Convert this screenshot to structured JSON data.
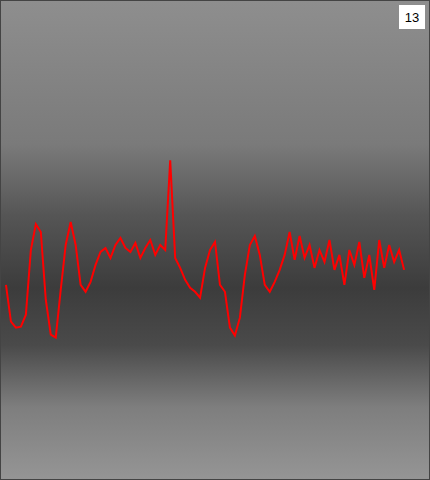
{
  "chart_data": {
    "type": "line",
    "annotations": [
      "13"
    ],
    "x": [
      5,
      10,
      15,
      20,
      25,
      30,
      35,
      40,
      45,
      50,
      55,
      60,
      65,
      70,
      75,
      80,
      85,
      90,
      95,
      100,
      105,
      110,
      115,
      120,
      125,
      130,
      135,
      140,
      145,
      150,
      155,
      160,
      165,
      170,
      175,
      180,
      185,
      190,
      195,
      200,
      205,
      210,
      215,
      220,
      225,
      230,
      235,
      240,
      245,
      250,
      255,
      260,
      265,
      270,
      275,
      280,
      285,
      290,
      295,
      300,
      305,
      310,
      315,
      320,
      325,
      330,
      335,
      340,
      345,
      350,
      355,
      360,
      365,
      370,
      375,
      380,
      385,
      390,
      395,
      400,
      405
    ],
    "values": [
      195,
      158,
      152,
      153,
      165,
      230,
      256,
      248,
      180,
      145,
      142,
      190,
      235,
      258,
      235,
      195,
      188,
      198,
      215,
      228,
      232,
      222,
      235,
      242,
      232,
      228,
      237,
      222,
      232,
      240,
      225,
      235,
      230,
      320,
      222,
      212,
      200,
      192,
      188,
      182,
      212,
      230,
      238,
      195,
      188,
      152,
      144,
      162,
      205,
      235,
      244,
      225,
      195,
      188,
      198,
      210,
      225,
      248,
      220,
      244,
      222,
      235,
      212,
      230,
      218,
      240,
      210,
      225,
      195,
      230,
      215,
      238,
      202,
      225,
      190,
      240,
      212,
      235,
      218,
      230,
      210
    ],
    "color": "#ff0000",
    "xlim": [
      0,
      430
    ],
    "ylim": [
      0,
      480
    ],
    "yticks": [
      25,
      45,
      65,
      85,
      105,
      125,
      145,
      165,
      185,
      205,
      225,
      245,
      265,
      285,
      305,
      325,
      345,
      365,
      385,
      405
    ],
    "tick_labels": false
  }
}
